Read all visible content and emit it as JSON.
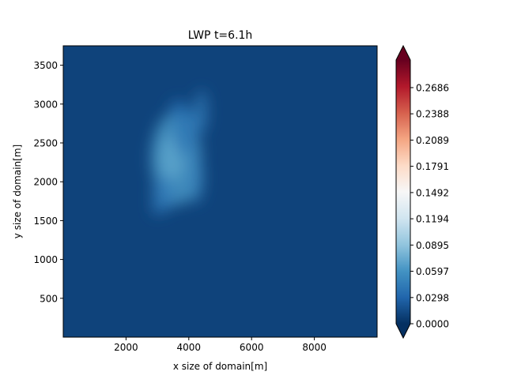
{
  "chart_data": {
    "type": "heatmap",
    "title": "LWP t=6.1h",
    "xlabel": "x size of domain[m]",
    "ylabel": "y size of domain[m]",
    "xlim": [
      0,
      10000
    ],
    "ylim": [
      0,
      3750
    ],
    "xticks": [
      2000,
      4000,
      6000,
      8000
    ],
    "xtick_labels": [
      "2000",
      "4000",
      "6000",
      "8000"
    ],
    "yticks": [
      500,
      1000,
      1500,
      2000,
      2500,
      3000,
      3500
    ],
    "ytick_labels": [
      "500",
      "1000",
      "1500",
      "2000",
      "2500",
      "3000",
      "3500"
    ],
    "grid": false,
    "colormap": "RdBu_r",
    "colorbar": {
      "range": [
        0.0,
        0.3
      ],
      "extend": "both",
      "ticks": [
        0.0,
        0.0298,
        0.0597,
        0.0895,
        0.1194,
        0.1492,
        0.1791,
        0.2089,
        0.2388,
        0.2686
      ],
      "tick_labels": [
        "0.0000",
        "0.0298",
        "0.0597",
        "0.0895",
        "0.1194",
        "0.1492",
        "0.1791",
        "0.2089",
        "0.2388",
        "0.2686"
      ]
    },
    "background_value": 0.0,
    "field_blobs": [
      {
        "x": 3600,
        "y": 2300,
        "rx": 800,
        "ry": 600,
        "value": 0.062
      },
      {
        "x": 3450,
        "y": 2300,
        "rx": 380,
        "ry": 300,
        "value": 0.07
      },
      {
        "x": 3200,
        "y": 1850,
        "rx": 350,
        "ry": 230,
        "value": 0.045
      },
      {
        "x": 3000,
        "y": 1680,
        "rx": 170,
        "ry": 110,
        "value": 0.038
      },
      {
        "x": 4200,
        "y": 2050,
        "rx": 260,
        "ry": 320,
        "value": 0.05
      },
      {
        "x": 4400,
        "y": 2900,
        "rx": 180,
        "ry": 280,
        "value": 0.045
      },
      {
        "x": 3900,
        "y": 2650,
        "rx": 380,
        "ry": 330,
        "value": 0.042
      },
      {
        "x": 3650,
        "y": 2930,
        "rx": 250,
        "ry": 120,
        "value": 0.035
      }
    ]
  }
}
